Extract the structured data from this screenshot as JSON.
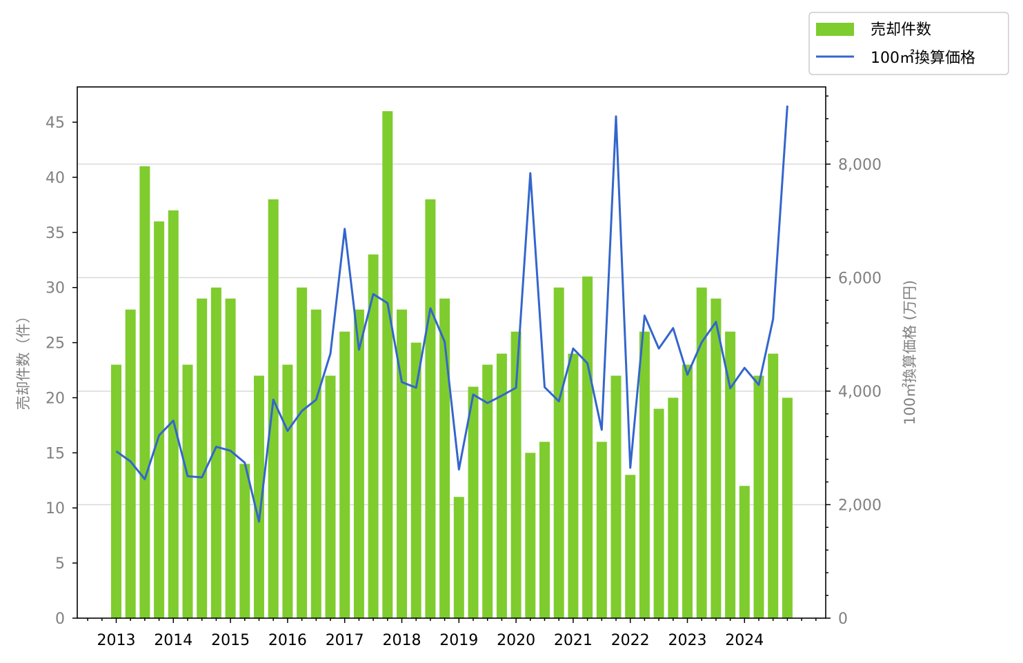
{
  "chart_data": {
    "type": "bar",
    "title": "",
    "ylabel_left": "売却件数（件）",
    "ylabel_right": "100㎡換算価格 (万円)",
    "x_tick_labels": [
      "2013",
      "2014",
      "2015",
      "2016",
      "2017",
      "2018",
      "2019",
      "2020",
      "2021",
      "2022",
      "2023",
      "2024"
    ],
    "y_left_ticks": [
      "0",
      "5",
      "10",
      "15",
      "20",
      "25",
      "30",
      "35",
      "40",
      "45"
    ],
    "y_right_ticks": [
      "0",
      "2,000",
      "4,000",
      "6,000",
      "8,000"
    ],
    "ylim_left": [
      0,
      48.2
    ],
    "ylim_right": [
      0,
      9360
    ],
    "grid": "horizontal lines at right-axis major ticks",
    "legend_position": "top-right, outside plot",
    "colors": {
      "bars": "#7fcc2e",
      "line": "#3366cc",
      "axis_text": "#808080",
      "grid": "#d9d9d9"
    },
    "periods_per_year": 4,
    "first_year": 2013,
    "series": [
      {
        "name": "売却件数",
        "kind": "bar",
        "axis": "left",
        "values": [
          23,
          28,
          41,
          36,
          37,
          23,
          29,
          30,
          29,
          14,
          22,
          38,
          23,
          30,
          28,
          22,
          26,
          28,
          33,
          46,
          28,
          25,
          38,
          29,
          11,
          21,
          23,
          24,
          26,
          15,
          16,
          30,
          24,
          31,
          16,
          22,
          13,
          26,
          19,
          20,
          23,
          30,
          29,
          26,
          12,
          22,
          24,
          20
        ]
      },
      {
        "name": "100㎡換算価格",
        "kind": "line",
        "axis": "right",
        "values": [
          2940,
          2760,
          2450,
          3220,
          3480,
          2500,
          2480,
          3020,
          2950,
          2740,
          1700,
          3850,
          3300,
          3650,
          3850,
          4660,
          6860,
          4730,
          5710,
          5550,
          4160,
          4060,
          5460,
          4870,
          2620,
          3940,
          3790,
          3920,
          4060,
          7840,
          4070,
          3820,
          4750,
          4490,
          3320,
          8840,
          2650,
          5330,
          4750,
          5110,
          4290,
          4860,
          5220,
          4050,
          4410,
          4110,
          5270,
          9030
        ]
      }
    ]
  }
}
